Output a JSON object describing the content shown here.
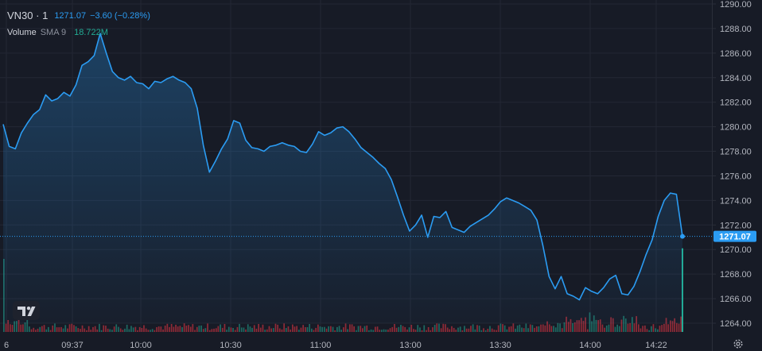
{
  "legend": {
    "symbol": "VN30 · 1",
    "last": "1271.07",
    "change": "−3.60",
    "change_pct": "(−0.28%)",
    "volume_label": "Volume",
    "sma_label": "SMA 9",
    "volume_value": "18.722M"
  },
  "icons": {
    "logo": "tradingview-logo",
    "settings": "gear-icon"
  },
  "colors": {
    "background": "#171b26",
    "line": "#2b9cf3",
    "last_price_badge": "#2b9cf3",
    "volume_up": "#22ab94",
    "volume_down": "#f23645",
    "grid": "#232734"
  },
  "chart_data": {
    "type": "area",
    "series": [
      {
        "name": "VN30",
        "values": [
          {
            "t": "09:15",
            "y": 1280.2
          },
          {
            "t": "09:17",
            "y": 1278.4
          },
          {
            "t": "09:19",
            "y": 1278.2
          },
          {
            "t": "09:21",
            "y": 1279.5
          },
          {
            "t": "09:23",
            "y": 1280.3
          },
          {
            "t": "09:25",
            "y": 1281.0
          },
          {
            "t": "09:27",
            "y": 1281.4
          },
          {
            "t": "09:29",
            "y": 1282.6
          },
          {
            "t": "09:31",
            "y": 1282.1
          },
          {
            "t": "09:33",
            "y": 1282.3
          },
          {
            "t": "09:35",
            "y": 1282.8
          },
          {
            "t": "09:37",
            "y": 1282.5
          },
          {
            "t": "09:39",
            "y": 1283.4
          },
          {
            "t": "09:41",
            "y": 1285.0
          },
          {
            "t": "09:43",
            "y": 1285.3
          },
          {
            "t": "09:45",
            "y": 1285.8
          },
          {
            "t": "09:47",
            "y": 1287.6
          },
          {
            "t": "09:49",
            "y": 1286.0
          },
          {
            "t": "09:51",
            "y": 1284.5
          },
          {
            "t": "09:53",
            "y": 1284.0
          },
          {
            "t": "09:55",
            "y": 1283.8
          },
          {
            "t": "09:57",
            "y": 1284.1
          },
          {
            "t": "09:59",
            "y": 1283.6
          },
          {
            "t": "10:02",
            "y": 1283.5
          },
          {
            "t": "10:04",
            "y": 1283.1
          },
          {
            "t": "10:06",
            "y": 1283.7
          },
          {
            "t": "10:08",
            "y": 1283.6
          },
          {
            "t": "10:10",
            "y": 1283.9
          },
          {
            "t": "10:12",
            "y": 1284.1
          },
          {
            "t": "10:14",
            "y": 1283.8
          },
          {
            "t": "10:16",
            "y": 1283.6
          },
          {
            "t": "10:18",
            "y": 1283.1
          },
          {
            "t": "10:20",
            "y": 1281.5
          },
          {
            "t": "10:22",
            "y": 1278.5
          },
          {
            "t": "10:24",
            "y": 1276.3
          },
          {
            "t": "10:26",
            "y": 1277.2
          },
          {
            "t": "10:28",
            "y": 1278.2
          },
          {
            "t": "10:30",
            "y": 1279.0
          },
          {
            "t": "10:32",
            "y": 1280.5
          },
          {
            "t": "10:34",
            "y": 1280.3
          },
          {
            "t": "10:36",
            "y": 1278.9
          },
          {
            "t": "10:38",
            "y": 1278.3
          },
          {
            "t": "10:40",
            "y": 1278.2
          },
          {
            "t": "10:42",
            "y": 1278.0
          },
          {
            "t": "10:44",
            "y": 1278.4
          },
          {
            "t": "10:46",
            "y": 1278.5
          },
          {
            "t": "10:48",
            "y": 1278.7
          },
          {
            "t": "10:50",
            "y": 1278.5
          },
          {
            "t": "10:52",
            "y": 1278.4
          },
          {
            "t": "10:54",
            "y": 1278.0
          },
          {
            "t": "10:56",
            "y": 1277.9
          },
          {
            "t": "10:58",
            "y": 1278.6
          },
          {
            "t": "11:00",
            "y": 1279.6
          },
          {
            "t": "11:02",
            "y": 1279.3
          },
          {
            "t": "11:04",
            "y": 1279.5
          },
          {
            "t": "11:06",
            "y": 1279.9
          },
          {
            "t": "11:08",
            "y": 1280.0
          },
          {
            "t": "11:10",
            "y": 1279.6
          },
          {
            "t": "11:12",
            "y": 1279.0
          },
          {
            "t": "11:14",
            "y": 1278.3
          },
          {
            "t": "11:16",
            "y": 1277.9
          },
          {
            "t": "11:18",
            "y": 1277.5
          },
          {
            "t": "11:20",
            "y": 1277.0
          },
          {
            "t": "11:22",
            "y": 1276.6
          },
          {
            "t": "11:24",
            "y": 1275.7
          },
          {
            "t": "11:26",
            "y": 1274.3
          },
          {
            "t": "11:28",
            "y": 1272.8
          },
          {
            "t": "11:30",
            "y": 1271.5
          },
          {
            "t": "13:00",
            "y": 1272.0
          },
          {
            "t": "13:02",
            "y": 1272.8
          },
          {
            "t": "13:04",
            "y": 1271.0
          },
          {
            "t": "13:06",
            "y": 1272.7
          },
          {
            "t": "13:08",
            "y": 1272.6
          },
          {
            "t": "13:10",
            "y": 1273.1
          },
          {
            "t": "13:12",
            "y": 1271.8
          },
          {
            "t": "13:14",
            "y": 1271.6
          },
          {
            "t": "13:16",
            "y": 1271.4
          },
          {
            "t": "13:18",
            "y": 1271.9
          },
          {
            "t": "13:20",
            "y": 1272.2
          },
          {
            "t": "13:22",
            "y": 1272.5
          },
          {
            "t": "13:24",
            "y": 1272.8
          },
          {
            "t": "13:26",
            "y": 1273.3
          },
          {
            "t": "13:28",
            "y": 1273.9
          },
          {
            "t": "13:30",
            "y": 1274.2
          },
          {
            "t": "13:32",
            "y": 1274.0
          },
          {
            "t": "13:34",
            "y": 1273.8
          },
          {
            "t": "13:36",
            "y": 1273.5
          },
          {
            "t": "13:38",
            "y": 1273.2
          },
          {
            "t": "13:40",
            "y": 1272.4
          },
          {
            "t": "13:42",
            "y": 1270.3
          },
          {
            "t": "13:44",
            "y": 1267.8
          },
          {
            "t": "13:46",
            "y": 1266.8
          },
          {
            "t": "13:48",
            "y": 1267.8
          },
          {
            "t": "13:50",
            "y": 1266.4
          },
          {
            "t": "13:52",
            "y": 1266.2
          },
          {
            "t": "13:54",
            "y": 1265.9
          },
          {
            "t": "13:56",
            "y": 1266.9
          },
          {
            "t": "13:58",
            "y": 1266.6
          },
          {
            "t": "14:00",
            "y": 1266.4
          },
          {
            "t": "14:02",
            "y": 1266.9
          },
          {
            "t": "14:04",
            "y": 1267.6
          },
          {
            "t": "14:06",
            "y": 1267.9
          },
          {
            "t": "14:08",
            "y": 1266.4
          },
          {
            "t": "14:10",
            "y": 1266.3
          },
          {
            "t": "14:12",
            "y": 1267.0
          },
          {
            "t": "14:14",
            "y": 1268.2
          },
          {
            "t": "14:16",
            "y": 1269.6
          },
          {
            "t": "14:18",
            "y": 1270.8
          },
          {
            "t": "14:20",
            "y": 1272.7
          },
          {
            "t": "14:22",
            "y": 1274.0
          },
          {
            "t": "14:24",
            "y": 1274.6
          },
          {
            "t": "14:26",
            "y": 1274.5
          },
          {
            "t": "14:28",
            "y": 1271.07
          }
        ]
      }
    ],
    "volume": {
      "up_share_pct": 35,
      "last_bar_share_pct": 100
    },
    "x_ticks": [
      "6",
      "09:37",
      "10:00",
      "10:30",
      "11:00",
      "13:00",
      "13:30",
      "14:00",
      "14:22"
    ],
    "y_ticks": [
      "1290.00",
      "1288.00",
      "1286.00",
      "1284.00",
      "1282.00",
      "1280.00",
      "1278.00",
      "1276.00",
      "1274.00",
      "1272.00",
      "1270.00",
      "1268.00",
      "1266.00",
      "1264.00"
    ],
    "ylim": [
      1263.5,
      1290
    ],
    "last_value": 1271.07,
    "last_label": "1271.07",
    "grid": true
  }
}
